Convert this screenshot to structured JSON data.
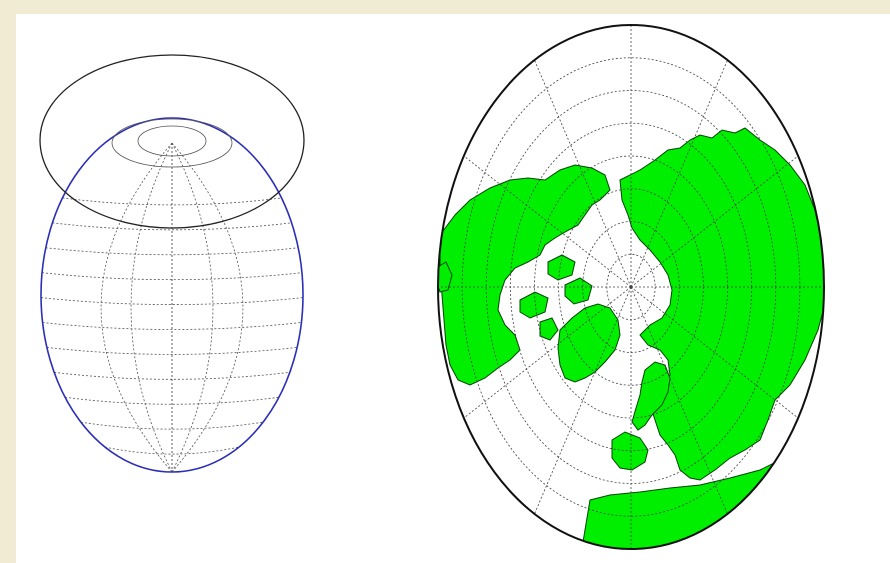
{
  "page": {
    "border_color": "#f2ebd3",
    "background_color": "#ffffff"
  },
  "left_figure": {
    "projection_plane_color": "#222222",
    "globe_outline_color": "#2b2fb8",
    "graticule_color": "#555555",
    "meridian_count": 12,
    "parallel_count": 11
  },
  "right_map": {
    "projection": "azimuthal",
    "center": "north-pole",
    "land_color": "#00ee00",
    "coast_color": "#004400",
    "outline_color": "#111111",
    "graticule_color": "#444444",
    "meridian_count": 12,
    "parallel_rings": 8
  }
}
